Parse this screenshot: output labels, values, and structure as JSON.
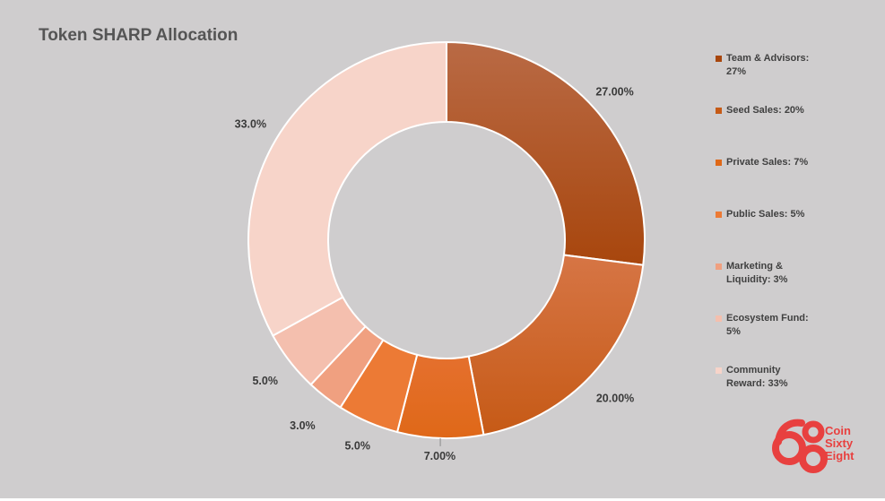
{
  "chart_data": {
    "type": "pie",
    "donut": true,
    "title": "Token SHARP Allocation",
    "categories": [
      "Team & Advisors",
      "Seed Sales",
      "Private Sales",
      "Public Sales",
      "Marketing & Liquidity",
      "Ecosystem Fund",
      "Community Reward"
    ],
    "values": [
      27,
      20,
      7,
      5,
      3,
      5,
      33
    ],
    "data_labels": [
      "27.00%",
      "20.00%",
      "7.00%",
      "5.0%",
      "3.0%",
      "5.0%",
      "33.0%"
    ],
    "legend": [
      "Team & Advisors: 27%",
      "Seed Sales: 20%",
      "Private Sales: 7%",
      "Public Sales: 5%",
      "Marketing & Liquidity: 3%",
      "Ecosystem Fund: 5%",
      "Community Reward: 33%"
    ],
    "legend_placement": "right",
    "colors": [
      "#b04b12",
      "#cc5d1d",
      "#e86c20",
      "#ec7a35",
      "#f0a080",
      "#f4bfae",
      "#f7d4c9"
    ],
    "grid": false
  },
  "logo": {
    "lines": [
      "Coin",
      "Sixty",
      "Eight"
    ],
    "color": "#e8403f"
  }
}
